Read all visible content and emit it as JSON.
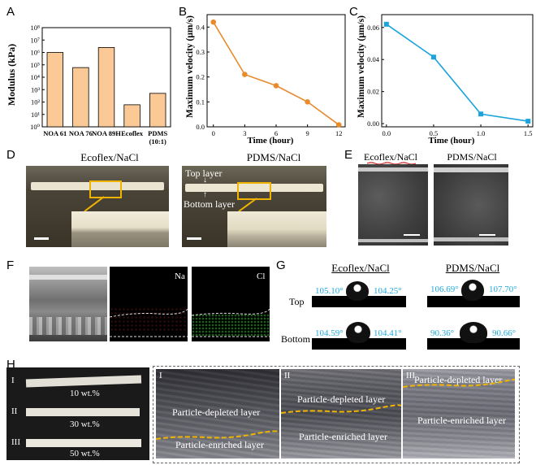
{
  "panels": {
    "A": "A",
    "B": "B",
    "C": "C",
    "D": "D",
    "E": "E",
    "F": "F",
    "G": "G",
    "H": "H"
  },
  "chart_data": [
    {
      "type": "bar",
      "panel": "A",
      "categories": [
        "NOA 61",
        "NOA 76",
        "NOA 89H",
        "Ecoflex",
        "PDMS"
      ],
      "category_sub": [
        "",
        "",
        "",
        "",
        "(10:1)"
      ],
      "values": [
        1000000,
        60000,
        2500000,
        60,
        500
      ],
      "ylabel": "Modulus (kPa)",
      "yscale": "log",
      "ylim": [
        1,
        100000000
      ],
      "ytick_labels": [
        "10⁰",
        "10¹",
        "10²",
        "10³",
        "10⁴",
        "10⁵",
        "10⁶",
        "10⁷",
        "10⁸"
      ],
      "bar_color": "#fbc995"
    },
    {
      "type": "line",
      "panel": "B",
      "x": [
        0,
        3,
        6,
        9,
        12
      ],
      "y": [
        0.42,
        0.21,
        0.165,
        0.1,
        0.008
      ],
      "xlabel": "Time (hour)",
      "ylabel": "Maximum velocity (μm/s)",
      "xlim": [
        -0.6,
        12.6
      ],
      "ylim": [
        0,
        0.45
      ],
      "xticks": [
        "0",
        "3",
        "6",
        "9",
        "12"
      ],
      "yticks": [
        "0.0",
        "0.1",
        "0.2",
        "0.3",
        "0.4"
      ],
      "color": "#e98a2c"
    },
    {
      "type": "line",
      "panel": "C",
      "x": [
        0.0,
        0.5,
        1.0,
        1.5
      ],
      "y": [
        0.062,
        0.0415,
        0.006,
        0.0015
      ],
      "xlabel": "Time (hour)",
      "ylabel": "Maximum velocity (μm/s)",
      "xlim": [
        -0.05,
        1.55
      ],
      "ylim": [
        -0.002,
        0.068
      ],
      "xticks": [
        "0.0",
        "0.5",
        "1.0",
        "1.5"
      ],
      "yticks": [
        "0.00",
        "0.02",
        "0.04",
        "0.06"
      ],
      "color": "#1aa3dd"
    }
  ],
  "panelD": {
    "left_title": "Ecoflex/NaCl",
    "right_title": "PDMS/NaCl",
    "top_layer": "Top layer",
    "bottom_layer": "Bottom layer"
  },
  "panelE": {
    "left_title": "Ecoflex/NaCl",
    "right_title": "PDMS/NaCl"
  },
  "panelF": {
    "na": "Na",
    "cl": "Cl"
  },
  "panelG": {
    "left_title": "Ecoflex/NaCl",
    "right_title": "PDMS/NaCl",
    "row_top": "Top",
    "row_bottom": "Bottom",
    "angles": {
      "eco_top_l": "105.10°",
      "eco_top_r": "104.25°",
      "pdms_top_l": "106.69°",
      "pdms_top_r": "107.70°",
      "eco_bot_l": "104.59°",
      "eco_bot_r": "104.41°",
      "pdms_bot_l": "90.36°",
      "pdms_bot_r": "90.66°"
    },
    "angle_color": "#22aadd"
  },
  "panelH": {
    "samples": [
      {
        "roman": "I",
        "wt": "10 wt.%"
      },
      {
        "roman": "II",
        "wt": "30 wt.%"
      },
      {
        "roman": "III",
        "wt": "50 wt.%"
      }
    ],
    "views": [
      {
        "roman": "I",
        "depleted": "Particle-depleted layer",
        "enriched": "Particle-enriched layer"
      },
      {
        "roman": "II",
        "depleted": "Particle-depleted layer",
        "enriched": "Particle-enriched layer"
      },
      {
        "roman": "III",
        "depleted": "Particle-depleted layer",
        "enriched": "Particle-enriched layer"
      }
    ]
  }
}
